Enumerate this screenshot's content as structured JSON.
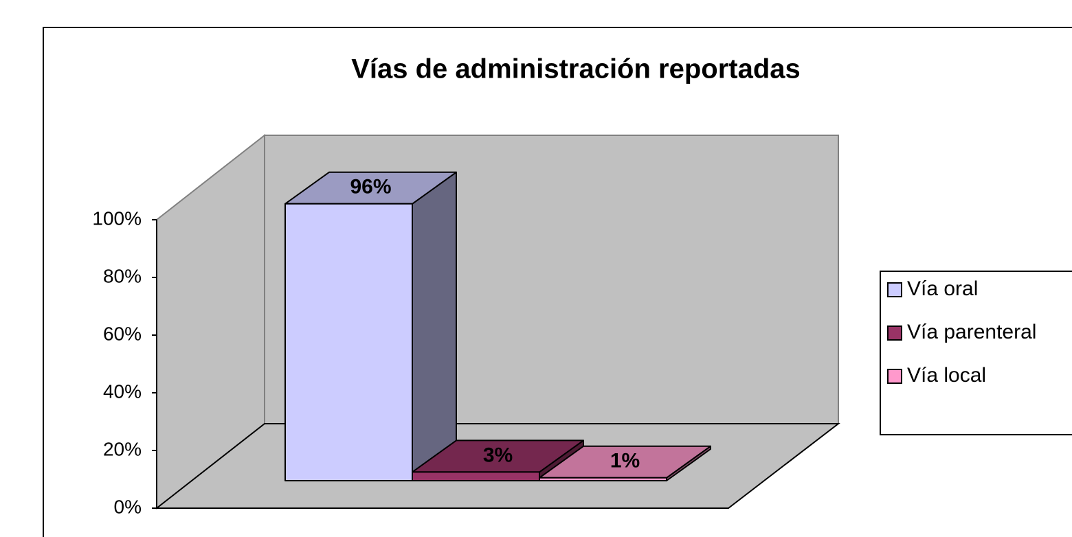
{
  "chart_data": {
    "type": "bar3d",
    "title": "Vías de administración reportadas",
    "series": [
      {
        "name": "Vía oral",
        "color": "#ccccff",
        "values": [
          96
        ],
        "value_labels": [
          "96%"
        ]
      },
      {
        "name": "Vía parenteral",
        "color": "#993366",
        "values": [
          3
        ],
        "value_labels": [
          "3%"
        ]
      },
      {
        "name": "Vía local",
        "color": "#ff99cc",
        "values": [
          1
        ],
        "value_labels": [
          "1%"
        ]
      }
    ],
    "ylim": [
      0,
      100
    ],
    "yticks": [
      {
        "value": 0,
        "label": "0%"
      },
      {
        "value": 20,
        "label": "20%"
      },
      {
        "value": 40,
        "label": "40%"
      },
      {
        "value": 60,
        "label": "60%"
      },
      {
        "value": 80,
        "label": "80%"
      },
      {
        "value": 100,
        "label": "100%"
      }
    ],
    "legend": "right"
  }
}
